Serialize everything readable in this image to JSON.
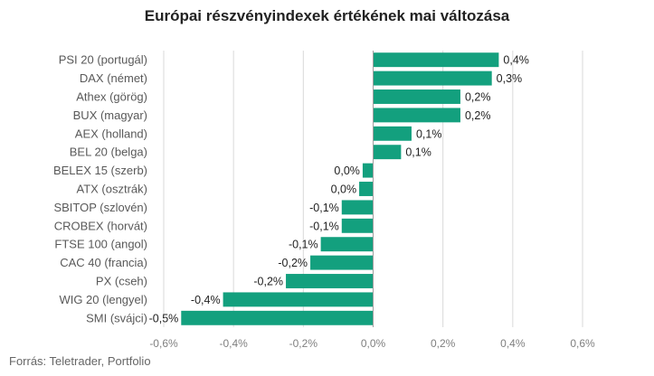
{
  "chart_data": {
    "type": "bar",
    "orientation": "horizontal",
    "title": "Európai részvényindexek értékének mai változása",
    "categories": [
      "PSI 20 (portugál)",
      "DAX (német)",
      "Athex (görög)",
      "BUX (magyar)",
      "AEX (holland)",
      "BEL 20 (belga)",
      "BELEX 15 (szerb)",
      "ATX (osztrák)",
      "SBITOP (szlovén)",
      "CROBEX (horvát)",
      "FTSE 100 (angol)",
      "CAC 40 (francia)",
      "PX (cseh)",
      "WIG 20 (lengyel)",
      "SMI (svájci)"
    ],
    "values": [
      0.36,
      0.34,
      0.25,
      0.25,
      0.11,
      0.08,
      -0.03,
      -0.04,
      -0.09,
      -0.09,
      -0.15,
      -0.18,
      -0.25,
      -0.43,
      -0.55
    ],
    "data_labels": [
      "0,4%",
      "0,3%",
      "0,2%",
      "0,2%",
      "0,1%",
      "0,1%",
      "0,0%",
      "0,0%",
      "-0,1%",
      "-0,1%",
      "-0,1%",
      "-0,2%",
      "-0,2%",
      "-0,4%",
      "-0,5%"
    ],
    "xlim": [
      -0.6,
      0.6
    ],
    "x_ticks": [
      -0.6,
      -0.4,
      -0.2,
      0.0,
      0.2,
      0.4,
      0.6
    ],
    "x_tick_labels": [
      "-0,6%",
      "-0,4%",
      "-0,2%",
      "0,0%",
      "0,2%",
      "0,4%",
      "0,6%"
    ],
    "grid": true,
    "bar_color": "#13a07e",
    "source": "Forrás: Teletrader, Portfolio"
  }
}
